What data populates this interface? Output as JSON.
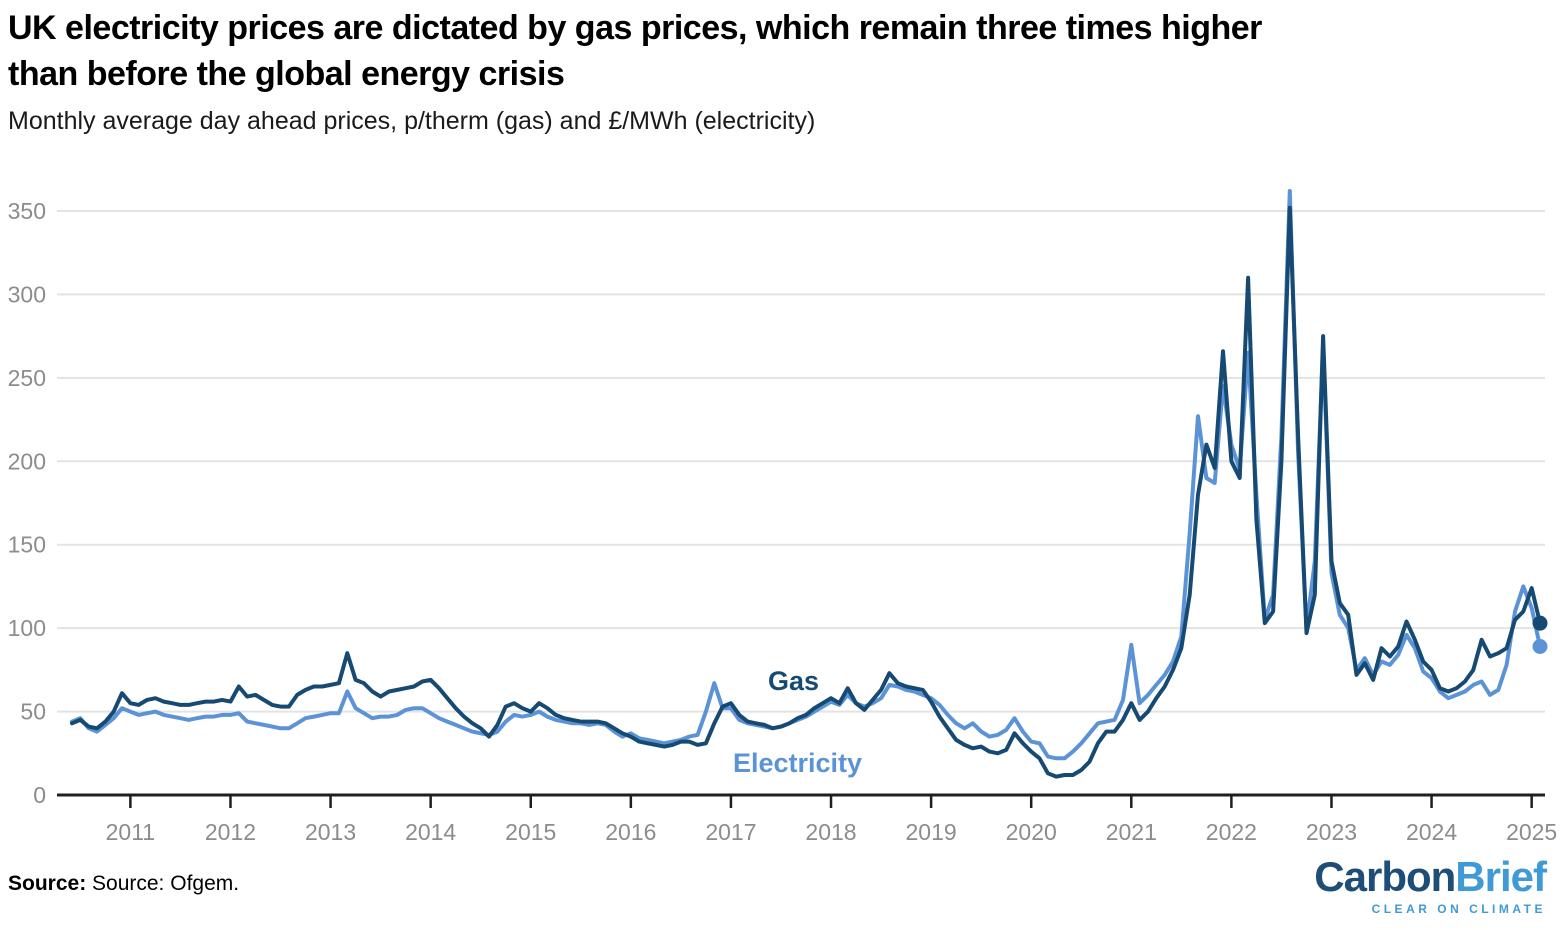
{
  "header": {
    "title_lines": [
      "UK electricity prices are dictated by gas prices, which remain three times higher",
      "than before the global energy crisis"
    ],
    "subtitle": "Monthly average day ahead prices, p/therm (gas) and £/MWh (electricity)"
  },
  "footer": {
    "source_label": "Source:",
    "source_text": " Source: Ofgem.",
    "logo": {
      "carbon": "Carbon",
      "brief": "Brief",
      "tagline": "CLEAR ON CLIMATE"
    }
  },
  "chart_data": {
    "type": "line",
    "title": "UK electricity prices are dictated by gas prices, which remain three times higher than before the global energy crisis",
    "subtitle": "Monthly average day ahead prices, p/therm (gas) and £/MWh (electricity)",
    "frequency": "monthly",
    "start_month": "2010-06",
    "end_month": "2025-02",
    "x_ticks": [
      2011,
      2012,
      2013,
      2014,
      2015,
      2016,
      2017,
      2018,
      2019,
      2020,
      2021,
      2022,
      2023,
      2024,
      2025
    ],
    "y_ticks": [
      0,
      50,
      100,
      150,
      200,
      250,
      300,
      350
    ],
    "ylim": [
      0,
      363
    ],
    "grid": "horizontal",
    "colors": {
      "gas": "#174A73",
      "electricity": "#5C93D6",
      "gridline": "#e3e3e3",
      "axis": "#1f1f1f",
      "tick_label": "#8c8c8c"
    },
    "series": [
      {
        "name": "Gas",
        "unit": "p/therm",
        "color": "#174A73",
        "last_value": 103,
        "values": [
          43,
          45,
          41,
          40,
          44,
          50,
          61,
          55,
          54,
          57,
          58,
          56,
          55,
          54,
          54,
          55,
          56,
          56,
          57,
          56,
          65,
          59,
          60,
          57,
          54,
          53,
          53,
          60,
          63,
          65,
          65,
          66,
          67,
          85,
          69,
          67,
          62,
          59,
          62,
          63,
          64,
          65,
          68,
          69,
          64,
          58,
          52,
          47,
          43,
          40,
          35,
          42,
          53,
          55,
          52,
          50,
          55,
          52,
          48,
          46,
          45,
          44,
          44,
          44,
          43,
          40,
          37,
          35,
          32,
          31,
          30,
          29,
          30,
          32,
          32,
          30,
          31,
          43,
          53,
          55,
          48,
          44,
          43,
          42,
          40,
          41,
          43,
          46,
          48,
          52,
          55,
          58,
          55,
          64,
          55,
          51,
          57,
          63,
          73,
          67,
          65,
          64,
          63,
          56,
          47,
          40,
          33,
          30,
          28,
          29,
          26,
          25,
          27,
          37,
          31,
          26,
          22,
          13,
          11,
          12,
          12,
          15,
          20,
          31,
          38,
          38,
          45,
          55,
          45,
          50,
          58,
          65,
          75,
          88,
          120,
          180,
          210,
          196,
          266,
          200,
          190,
          310,
          165,
          103,
          110,
          200,
          352,
          215,
          97,
          120,
          275,
          140,
          115,
          108,
          72,
          79,
          69,
          88,
          83,
          89,
          104,
          93,
          80,
          75,
          64,
          62,
          64,
          68,
          75,
          93,
          83,
          85,
          88,
          105,
          110,
          124,
          103
        ]
      },
      {
        "name": "Electricity",
        "unit": "£/MWh",
        "color": "#5C93D6",
        "last_value": 89,
        "values": [
          44,
          46,
          40,
          38,
          42,
          46,
          52,
          50,
          48,
          49,
          50,
          48,
          47,
          46,
          45,
          46,
          47,
          47,
          48,
          48,
          49,
          44,
          43,
          42,
          41,
          40,
          40,
          43,
          46,
          47,
          48,
          49,
          49,
          62,
          52,
          49,
          46,
          47,
          47,
          48,
          51,
          52,
          52,
          49,
          46,
          44,
          42,
          40,
          38,
          37,
          36,
          38,
          44,
          48,
          47,
          48,
          50,
          47,
          45,
          44,
          43,
          43,
          42,
          43,
          42,
          38,
          35,
          37,
          34,
          33,
          32,
          31,
          32,
          33,
          35,
          36,
          50,
          67,
          52,
          52,
          45,
          43,
          42,
          41,
          40,
          41,
          43,
          45,
          47,
          50,
          53,
          56,
          54,
          60,
          55,
          53,
          55,
          58,
          66,
          65,
          63,
          62,
          60,
          58,
          54,
          48,
          43,
          40,
          43,
          38,
          35,
          36,
          39,
          46,
          38,
          32,
          31,
          23,
          22,
          22,
          26,
          31,
          37,
          43,
          44,
          45,
          57,
          90,
          55,
          60,
          66,
          72,
          80,
          95,
          157,
          227,
          190,
          187,
          245,
          210,
          195,
          265,
          180,
          105,
          120,
          215,
          362,
          205,
          100,
          140,
          270,
          133,
          108,
          100,
          75,
          82,
          72,
          80,
          78,
          84,
          96,
          88,
          74,
          70,
          62,
          58,
          60,
          62,
          66,
          68,
          60,
          63,
          78,
          110,
          125,
          112,
          89
        ]
      }
    ],
    "series_labels": [
      {
        "text": "Gas",
        "x": 768,
        "y": 690
      },
      {
        "text": "Electricity",
        "x": 733,
        "y": 772
      }
    ]
  }
}
